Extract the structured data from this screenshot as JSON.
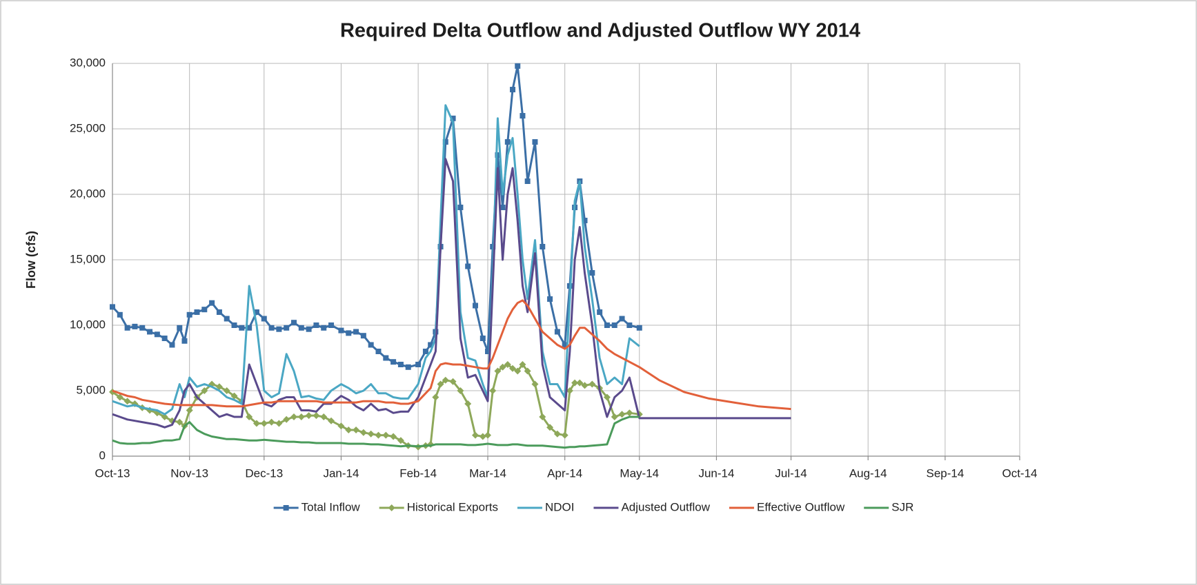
{
  "chart_data": {
    "type": "line",
    "title": "Required Delta Outflow and Adjusted Outflow WY 2014",
    "y_label": "Flow (cfs)",
    "grid": true,
    "legend": "bottom",
    "x": [
      0,
      3,
      6,
      9,
      12,
      15,
      18,
      21,
      24,
      27,
      29,
      31,
      34,
      37,
      40,
      43,
      46,
      49,
      52,
      55,
      58,
      61,
      64,
      67,
      70,
      73,
      76,
      79,
      82,
      85,
      88,
      92,
      95,
      98,
      101,
      104,
      107,
      110,
      113,
      116,
      119,
      123,
      126,
      128,
      130,
      132,
      134,
      137,
      140,
      143,
      146,
      149,
      151,
      153,
      155,
      157,
      159,
      161,
      163,
      165,
      167,
      170,
      173,
      176,
      179,
      182,
      184,
      186,
      188,
      190,
      193,
      196,
      199,
      202,
      205,
      208,
      212,
      220,
      230,
      240,
      250,
      260,
      273
    ],
    "xlim": [
      0,
      365
    ],
    "xticks": [
      {
        "value": 0,
        "label": "Oct-13"
      },
      {
        "value": 31,
        "label": "Nov-13"
      },
      {
        "value": 61,
        "label": "Dec-13"
      },
      {
        "value": 92,
        "label": "Jan-14"
      },
      {
        "value": 123,
        "label": "Feb-14"
      },
      {
        "value": 151,
        "label": "Mar-14"
      },
      {
        "value": 182,
        "label": "Apr-14"
      },
      {
        "value": 212,
        "label": "May-14"
      },
      {
        "value": 243,
        "label": "Jun-14"
      },
      {
        "value": 273,
        "label": "Jul-14"
      },
      {
        "value": 304,
        "label": "Aug-14"
      },
      {
        "value": 335,
        "label": "Sep-14"
      },
      {
        "value": 365,
        "label": "Oct-14"
      }
    ],
    "ylim": [
      0,
      30000
    ],
    "yticks": [
      0,
      {
        "value": 5000,
        "label": "5,000"
      },
      {
        "value": 10000,
        "label": "10,000"
      },
      {
        "value": 15000,
        "label": "15,000"
      },
      {
        "value": 20000,
        "label": "20,000"
      },
      {
        "value": 25000,
        "label": "25,000"
      },
      {
        "value": 30000,
        "label": "30,000"
      }
    ],
    "series": [
      {
        "name": "Total Inflow",
        "color": "#3b6fa6",
        "marker": "square",
        "values": [
          11400,
          10800,
          9800,
          9900,
          9800,
          9500,
          9300,
          9000,
          8500,
          9800,
          8800,
          10800,
          11000,
          11200,
          11700,
          11000,
          10500,
          10000,
          9800,
          9800,
          11000,
          10500,
          9800,
          9700,
          9800,
          10200,
          9800,
          9700,
          10000,
          9800,
          10000,
          9600,
          9400,
          9500,
          9200,
          8500,
          8000,
          7500,
          7200,
          7000,
          6800,
          7000,
          8000,
          8500,
          9500,
          16000,
          24000,
          25800,
          19000,
          14500,
          11500,
          9000,
          8000,
          16000,
          23000,
          19000,
          24000,
          28000,
          29800,
          26000,
          21000,
          24000,
          16000,
          12000,
          9500,
          8500,
          13000,
          19000,
          21000,
          18000,
          14000,
          11000,
          10000,
          10000,
          10500,
          10000,
          9800,
          null,
          null,
          null,
          null,
          null,
          null
        ]
      },
      {
        "name": "Historical Exports",
        "color": "#8ea85a",
        "marker": "diamond",
        "values": [
          4900,
          4500,
          4200,
          4000,
          3700,
          3500,
          3300,
          3000,
          2700,
          2600,
          2300,
          3500,
          4500,
          5000,
          5500,
          5300,
          5000,
          4600,
          4200,
          3000,
          2500,
          2500,
          2600,
          2500,
          2800,
          3000,
          3000,
          3100,
          3100,
          3000,
          2700,
          2300,
          2000,
          2000,
          1800,
          1700,
          1600,
          1600,
          1500,
          1200,
          800,
          700,
          800,
          900,
          4500,
          5500,
          5800,
          5700,
          5000,
          4000,
          1600,
          1500,
          1600,
          5000,
          6500,
          6800,
          7000,
          6700,
          6500,
          7000,
          6500,
          5500,
          3000,
          2200,
          1700,
          1600,
          5000,
          5600,
          5600,
          5400,
          5500,
          5200,
          4500,
          3000,
          3200,
          3300,
          3200,
          null,
          null,
          null,
          null,
          null,
          null
        ]
      },
      {
        "name": "NDOI",
        "color": "#4aa7c4",
        "marker": "none",
        "values": [
          4200,
          4000,
          3800,
          3900,
          3700,
          3600,
          3500,
          3200,
          3600,
          5500,
          4500,
          6000,
          5300,
          5500,
          5300,
          5000,
          4500,
          4300,
          4000,
          13000,
          10000,
          5000,
          4500,
          4800,
          7800,
          6500,
          4500,
          4600,
          4400,
          4300,
          5000,
          5500,
          5200,
          4800,
          5000,
          5500,
          4800,
          4800,
          4500,
          4400,
          4400,
          5500,
          7500,
          8000,
          9000,
          18000,
          26800,
          25500,
          11000,
          7500,
          7300,
          5500,
          4500,
          14000,
          25800,
          20000,
          23000,
          24300,
          20000,
          15000,
          12000,
          16500,
          8000,
          5500,
          5500,
          4500,
          12000,
          19500,
          21000,
          16000,
          12000,
          7500,
          5500,
          6000,
          5500,
          9000,
          8400,
          null,
          null,
          null,
          null,
          null,
          null
        ]
      },
      {
        "name": "Adjusted Outflow",
        "color": "#5a4a8c",
        "marker": "none",
        "values": [
          3200,
          3000,
          2800,
          2700,
          2600,
          2500,
          2400,
          2200,
          2400,
          3500,
          5000,
          5500,
          4500,
          4000,
          3500,
          3000,
          3200,
          3000,
          3000,
          7000,
          5500,
          4000,
          3800,
          4300,
          4500,
          4500,
          3500,
          3500,
          3400,
          4000,
          4000,
          4600,
          4300,
          3800,
          3500,
          4000,
          3500,
          3600,
          3300,
          3400,
          3400,
          4500,
          6000,
          7000,
          8000,
          16000,
          22700,
          21000,
          9000,
          6000,
          6200,
          5000,
          4200,
          13000,
          22000,
          15000,
          20000,
          22000,
          18000,
          13000,
          11000,
          15500,
          7000,
          4500,
          4000,
          3500,
          8000,
          15000,
          17500,
          14000,
          10000,
          5000,
          3000,
          4500,
          5000,
          6000,
          2900,
          2900,
          2900,
          2900,
          2900,
          2900,
          2900
        ]
      },
      {
        "name": "Effective Outflow",
        "color": "#e2603a",
        "marker": "none",
        "values": [
          5000,
          4800,
          4600,
          4500,
          4300,
          4200,
          4100,
          4000,
          3950,
          3900,
          3900,
          3900,
          3900,
          3900,
          3900,
          3850,
          3800,
          3800,
          3800,
          3900,
          4000,
          4100,
          4100,
          4200,
          4200,
          4200,
          4200,
          4200,
          4200,
          4100,
          4100,
          4100,
          4100,
          4100,
          4200,
          4200,
          4200,
          4100,
          4100,
          4000,
          4000,
          4200,
          4800,
          5200,
          6500,
          7000,
          7100,
          7000,
          7000,
          6900,
          6800,
          6700,
          6700,
          7500,
          8500,
          9500,
          10500,
          11200,
          11700,
          11900,
          11500,
          10500,
          9500,
          9000,
          8500,
          8200,
          8500,
          9200,
          9800,
          9800,
          9300,
          8800,
          8200,
          7800,
          7500,
          7200,
          6800,
          5800,
          4900,
          4400,
          4100,
          3800,
          3600
        ]
      },
      {
        "name": "SJR",
        "color": "#4b9b5b",
        "marker": "none",
        "values": [
          1200,
          1000,
          950,
          950,
          1000,
          1000,
          1100,
          1200,
          1200,
          1300,
          2300,
          2600,
          2000,
          1700,
          1500,
          1400,
          1300,
          1300,
          1250,
          1200,
          1200,
          1250,
          1200,
          1150,
          1100,
          1100,
          1050,
          1050,
          1000,
          1000,
          1000,
          1000,
          950,
          950,
          950,
          900,
          900,
          850,
          800,
          750,
          800,
          750,
          800,
          800,
          900,
          900,
          900,
          900,
          900,
          850,
          850,
          900,
          950,
          900,
          850,
          850,
          850,
          900,
          900,
          850,
          800,
          800,
          800,
          750,
          700,
          650,
          700,
          700,
          750,
          750,
          800,
          850,
          900,
          2500,
          2800,
          3000,
          3000,
          null,
          null,
          null,
          null,
          null,
          null
        ]
      }
    ]
  }
}
